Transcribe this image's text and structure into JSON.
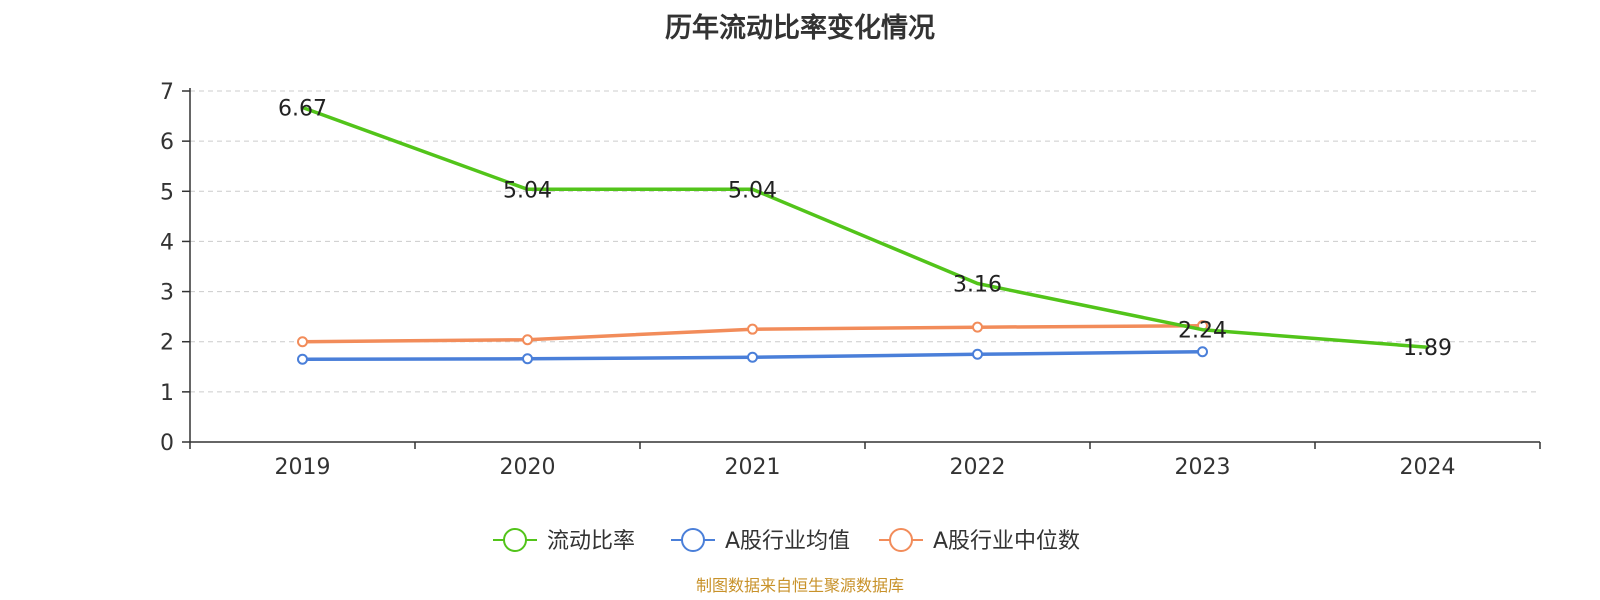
{
  "title": "历年流动比率变化情况",
  "source": "制图数据来自恒生聚源数据库",
  "chart_data": {
    "type": "line",
    "categories": [
      "2019",
      "2020",
      "2021",
      "2022",
      "2023",
      "2024"
    ],
    "y_ticks": [
      "0",
      "1",
      "2",
      "3",
      "4",
      "5",
      "6",
      "7"
    ],
    "ylim": [
      0,
      7
    ],
    "grid": true,
    "legend_position": "bottom",
    "series": [
      {
        "name": "流动比率",
        "color": "#52c41a",
        "values": [
          6.67,
          5.04,
          5.04,
          3.16,
          2.24,
          1.89
        ],
        "labels": [
          "6.67",
          "5.04",
          "5.04",
          "3.16",
          "2.24",
          "1.89"
        ],
        "show_points": false
      },
      {
        "name": "A股行业均值",
        "color": "#4a7fd9",
        "values": [
          1.65,
          1.66,
          1.69,
          1.75,
          1.8,
          null
        ],
        "show_points": true
      },
      {
        "name": "A股行业中位数",
        "color": "#f28c5a",
        "values": [
          2.0,
          2.04,
          2.25,
          2.29,
          2.32,
          null
        ],
        "show_points": true
      }
    ]
  }
}
